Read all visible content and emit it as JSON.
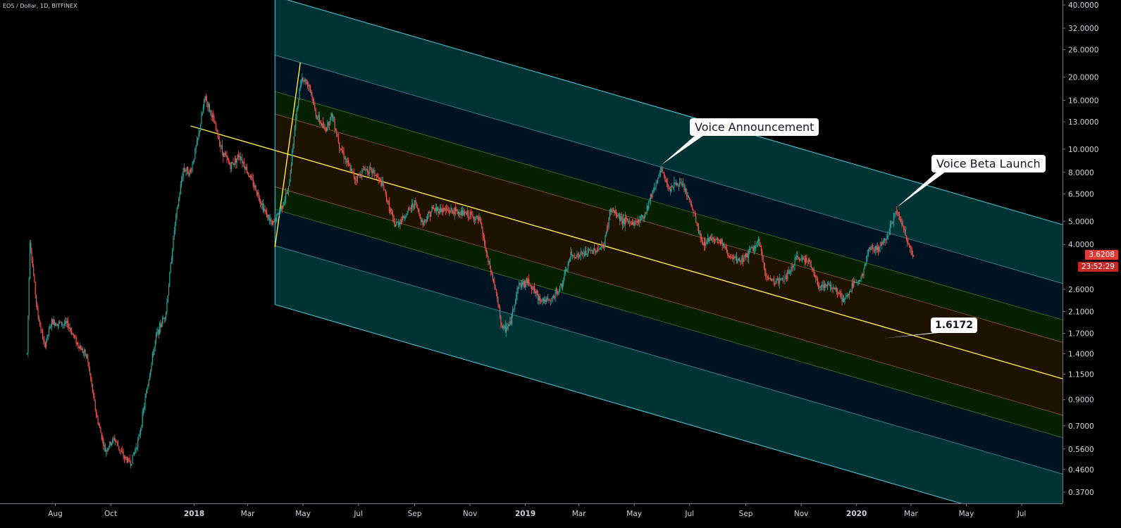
{
  "header": {
    "symbol": "EOS / Dollar, 1D, BITFINEX"
  },
  "colors": {
    "background": "#000000",
    "up": "#26a69a",
    "down": "#ef5350",
    "axis_text": "#d1d4dc",
    "channel_outer_line": "#4dd0e1",
    "median_line": "#ffeb3b",
    "band_outer": "rgba(0,150,150,0.35)",
    "band_blue": "rgba(0,70,120,0.28)",
    "band_green": "rgba(20,100,0,0.32)",
    "band_orange": "rgba(120,70,0,0.25)"
  },
  "annotations": {
    "voice_announcement": "Voice Announcement",
    "voice_beta_launch": "Voice Beta Launch",
    "median_label": "1.6172"
  },
  "price_scale": {
    "last_price": "3.6208",
    "countdown": "23:52:29"
  },
  "chart_data": {
    "type": "candlestick",
    "title": "EOS / Dollar, 1D, BITFINEX",
    "y_scale": "log",
    "ylim": [
      0.34,
      40.0
    ],
    "y_ticks": [
      "40.0000",
      "32.0000",
      "26.0000",
      "20.0000",
      "16.0000",
      "13.0000",
      "10.0000",
      "8.0000",
      "6.5000",
      "5.0000",
      "4.0000",
      "2.6000",
      "2.1000",
      "1.7000",
      "1.4000",
      "1.1500",
      "0.9000",
      "0.7000",
      "0.5600",
      "0.4600",
      "0.3700"
    ],
    "x_ticks": [
      "Aug",
      "Oct",
      "2018",
      "Mar",
      "May",
      "Jul",
      "Sep",
      "Nov",
      "2019",
      "Mar",
      "May",
      "Jul",
      "Sep",
      "Nov",
      "2020",
      "Mar",
      "May",
      "Jul"
    ],
    "x_range": [
      "2017-07-01",
      "2020-08-15"
    ],
    "price_path": [
      [
        "2017-07-01",
        1.4
      ],
      [
        "2017-07-04",
        4.2
      ],
      [
        "2017-07-12",
        2.1
      ],
      [
        "2017-07-20",
        1.5
      ],
      [
        "2017-07-28",
        1.9
      ],
      [
        "2017-08-15",
        1.85
      ],
      [
        "2017-08-25",
        1.55
      ],
      [
        "2017-09-05",
        1.35
      ],
      [
        "2017-09-15",
        0.78
      ],
      [
        "2017-09-25",
        0.55
      ],
      [
        "2017-10-05",
        0.62
      ],
      [
        "2017-10-15",
        0.52
      ],
      [
        "2017-10-23",
        0.49
      ],
      [
        "2017-11-01",
        0.62
      ],
      [
        "2017-11-10",
        1.0
      ],
      [
        "2017-11-20",
        1.65
      ],
      [
        "2017-12-01",
        2.1
      ],
      [
        "2017-12-10",
        4.6
      ],
      [
        "2017-12-20",
        8.3
      ],
      [
        "2017-12-28",
        8.0
      ],
      [
        "2018-01-05",
        11.0
      ],
      [
        "2018-01-13",
        16.5
      ],
      [
        "2018-01-20",
        14.0
      ],
      [
        "2018-02-01",
        9.8
      ],
      [
        "2018-02-10",
        8.5
      ],
      [
        "2018-02-20",
        9.5
      ],
      [
        "2018-03-01",
        8.0
      ],
      [
        "2018-03-10",
        6.8
      ],
      [
        "2018-03-20",
        5.5
      ],
      [
        "2018-03-28",
        4.8
      ],
      [
        "2018-04-05",
        5.5
      ],
      [
        "2018-04-15",
        6.8
      ],
      [
        "2018-04-22",
        12.5
      ],
      [
        "2018-04-29",
        20.0
      ],
      [
        "2018-05-08",
        18.5
      ],
      [
        "2018-05-15",
        14.0
      ],
      [
        "2018-05-25",
        12.0
      ],
      [
        "2018-06-02",
        14.0
      ],
      [
        "2018-06-10",
        10.5
      ],
      [
        "2018-06-20",
        8.5
      ],
      [
        "2018-06-28",
        7.5
      ],
      [
        "2018-07-08",
        8.3
      ],
      [
        "2018-07-18",
        8.0
      ],
      [
        "2018-07-28",
        7.0
      ],
      [
        "2018-08-10",
        4.8
      ],
      [
        "2018-08-20",
        5.2
      ],
      [
        "2018-09-01",
        6.0
      ],
      [
        "2018-09-10",
        4.9
      ],
      [
        "2018-09-20",
        5.6
      ],
      [
        "2018-10-01",
        5.6
      ],
      [
        "2018-10-15",
        5.5
      ],
      [
        "2018-11-01",
        5.3
      ],
      [
        "2018-11-12",
        5.0
      ],
      [
        "2018-11-20",
        3.5
      ],
      [
        "2018-11-28",
        2.7
      ],
      [
        "2018-12-07",
        1.75
      ],
      [
        "2018-12-15",
        1.85
      ],
      [
        "2018-12-24",
        2.7
      ],
      [
        "2019-01-05",
        2.8
      ],
      [
        "2019-01-15",
        2.4
      ],
      [
        "2019-01-28",
        2.3
      ],
      [
        "2019-02-10",
        2.7
      ],
      [
        "2019-02-20",
        3.6
      ],
      [
        "2019-03-01",
        3.6
      ],
      [
        "2019-03-15",
        3.75
      ],
      [
        "2019-03-28",
        3.9
      ],
      [
        "2019-04-05",
        5.6
      ],
      [
        "2019-04-20",
        5.0
      ],
      [
        "2019-05-01",
        4.9
      ],
      [
        "2019-05-12",
        5.3
      ],
      [
        "2019-05-20",
        6.5
      ],
      [
        "2019-05-31",
        8.2
      ],
      [
        "2019-06-08",
        6.9
      ],
      [
        "2019-06-18",
        7.2
      ],
      [
        "2019-06-25",
        6.9
      ],
      [
        "2019-07-05",
        5.5
      ],
      [
        "2019-07-15",
        4.0
      ],
      [
        "2019-07-25",
        4.3
      ],
      [
        "2019-08-05",
        4.1
      ],
      [
        "2019-08-15",
        3.5
      ],
      [
        "2019-08-25",
        3.4
      ],
      [
        "2019-09-05",
        3.7
      ],
      [
        "2019-09-15",
        4.1
      ],
      [
        "2019-09-24",
        2.9
      ],
      [
        "2019-10-05",
        2.8
      ],
      [
        "2019-10-15",
        2.9
      ],
      [
        "2019-10-27",
        3.5
      ],
      [
        "2019-11-08",
        3.5
      ],
      [
        "2019-11-20",
        2.7
      ],
      [
        "2019-12-01",
        2.7
      ],
      [
        "2019-12-10",
        2.6
      ],
      [
        "2019-12-18",
        2.3
      ],
      [
        "2019-12-28",
        2.7
      ],
      [
        "2020-01-08",
        3.0
      ],
      [
        "2020-01-15",
        3.9
      ],
      [
        "2020-01-25",
        3.8
      ],
      [
        "2020-02-05",
        4.5
      ],
      [
        "2020-02-14",
        5.6
      ],
      [
        "2020-02-22",
        4.6
      ],
      [
        "2020-02-28",
        3.9
      ],
      [
        "2020-03-04",
        3.62
      ]
    ],
    "drawings": {
      "fib_channel": {
        "median_start": [
          "2017-12-28",
          12.5
        ],
        "median_end": [
          "2020-08-15",
          1.1
        ],
        "pivot": [
          "2018-04-28",
          23.0
        ],
        "low_anchor": [
          "2018-03-31",
          3.9
        ],
        "band_levels": [
          -1.618,
          -1.0,
          -0.618,
          -0.382,
          0,
          0.382,
          0.618,
          1.0,
          1.618
        ]
      },
      "callouts": [
        {
          "text_key": "voice_announcement",
          "point": [
            "2019-05-31",
            8.6
          ]
        },
        {
          "text_key": "voice_beta_launch",
          "point": [
            "2020-02-14",
            5.7
          ]
        },
        {
          "text_key": "median_label",
          "point": [
            "2020-01-30",
            1.62
          ]
        }
      ]
    }
  }
}
